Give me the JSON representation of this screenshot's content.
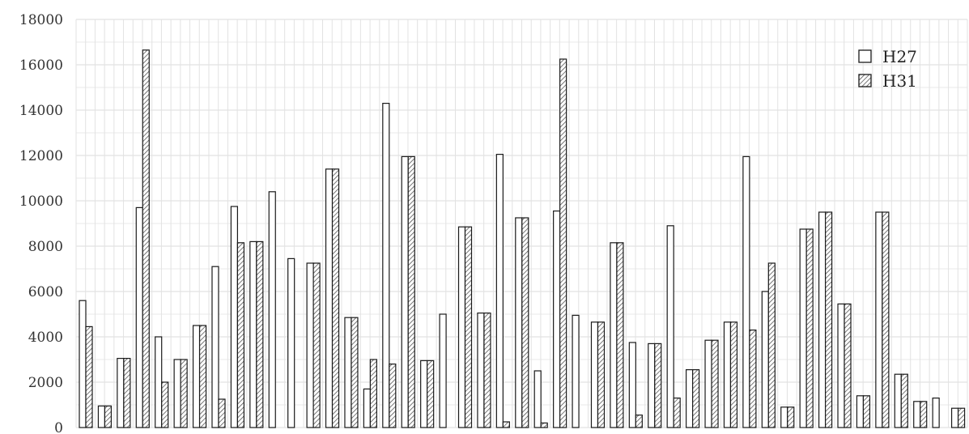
{
  "chart_data": {
    "type": "bar",
    "ylim": [
      0,
      18000
    ],
    "yticks": [
      "0",
      "2000",
      "4000",
      "6000",
      "8000",
      "10000",
      "12000",
      "14000",
      "16000",
      "18000"
    ],
    "grid": true,
    "legend_position": "top-right",
    "categories_count": 47,
    "series": [
      {
        "name": "H27",
        "pattern": "none",
        "values": [
          5600,
          950,
          3050,
          9700,
          4000,
          3000,
          4500,
          7100,
          9750,
          8200,
          10400,
          7450,
          7250,
          11400,
          4850,
          1700,
          14300,
          11950,
          2950,
          5000,
          8850,
          5050,
          12050,
          9250,
          2500,
          9550,
          4950,
          4650,
          8150,
          3750,
          3700,
          8900,
          2550,
          3850,
          4650,
          11950,
          6000,
          900,
          8750,
          9500,
          5450,
          1400,
          9500,
          2350,
          1150,
          1300,
          850
        ]
      },
      {
        "name": "H31",
        "pattern": "hatched",
        "values": [
          4450,
          950,
          3050,
          16650,
          2000,
          3000,
          4500,
          1250,
          8150,
          8200,
          0,
          0,
          7250,
          11400,
          4850,
          3000,
          2800,
          11950,
          2950,
          0,
          8850,
          5050,
          250,
          9250,
          200,
          16250,
          0,
          4650,
          8150,
          550,
          3700,
          1300,
          2550,
          3850,
          4650,
          4300,
          7250,
          900,
          8750,
          9500,
          5450,
          1400,
          9500,
          2350,
          1150,
          0,
          850
        ]
      }
    ]
  },
  "colors": {
    "bar_stroke": "#1a1a1a",
    "hatch": "#555555",
    "grid": "#e2e2e2"
  }
}
